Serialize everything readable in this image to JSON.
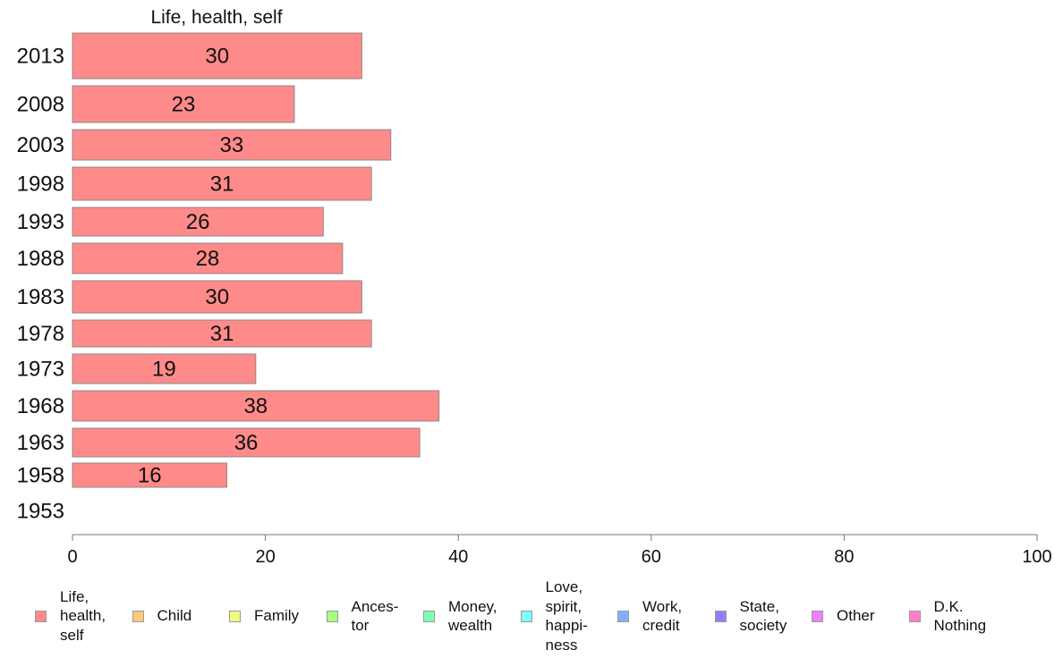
{
  "chart_data": {
    "type": "bar",
    "orientation": "horizontal",
    "title": "Life, health, self",
    "categories": [
      "2013",
      "2008",
      "2003",
      "1998",
      "1993",
      "1988",
      "1983",
      "1978",
      "1973",
      "1968",
      "1963",
      "1958",
      "1953"
    ],
    "values": [
      30,
      23,
      33,
      31,
      26,
      28,
      30,
      31,
      19,
      38,
      36,
      16,
      null
    ],
    "xlim": [
      0,
      100
    ],
    "xticks": [
      "0",
      "20",
      "40",
      "60",
      "80",
      "100"
    ],
    "xlabel": "",
    "ylabel": "",
    "grid": false,
    "bar_color": "#ff8a8a",
    "legend_position": "bottom",
    "legend": [
      {
        "label": "Life,\nhealth,\nself",
        "color": "#ff8a8a"
      },
      {
        "label": "Child",
        "color": "#ffc880"
      },
      {
        "label": "Family",
        "color": "#f0ff80"
      },
      {
        "label": "Ances-\ntor",
        "color": "#a8ff80"
      },
      {
        "label": "Money,\nwealth",
        "color": "#80ffb0"
      },
      {
        "label": "Love,\nspirit,\nhappi-\nness",
        "color": "#80ffff"
      },
      {
        "label": "Work,\ncredit",
        "color": "#80b0ff"
      },
      {
        "label": "State,\nsociety",
        "color": "#9080ff"
      },
      {
        "label": "Other",
        "color": "#f080ff"
      },
      {
        "label": "D.K.\nNothing",
        "color": "#ff80c8"
      }
    ]
  }
}
